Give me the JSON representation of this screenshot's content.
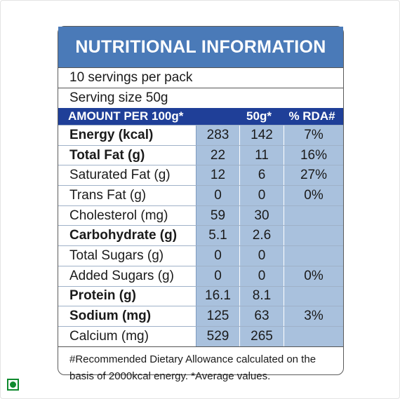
{
  "title": "NUTRITIONAL INFORMATION",
  "servings": "10 servings per pack",
  "serving_size": "Serving size 50g",
  "columns": [
    "AMOUNT PER 100g*",
    "50g*",
    "% RDA#"
  ],
  "rows": [
    {
      "name": "Energy (kcal)",
      "bold": true,
      "per100": "283",
      "per50": "142",
      "rda": "7%"
    },
    {
      "name": "Total Fat (g)",
      "bold": true,
      "per100": "22",
      "per50": "11",
      "rda": "16%"
    },
    {
      "name": "Saturated Fat (g)",
      "bold": false,
      "per100": "12",
      "per50": "6",
      "rda": "27%"
    },
    {
      "name": "Trans Fat (g)",
      "bold": false,
      "per100": "0",
      "per50": "0",
      "rda": "0%"
    },
    {
      "name": "Cholesterol (mg)",
      "bold": false,
      "per100": "59",
      "per50": "30",
      "rda": ""
    },
    {
      "name": "Carbohydrate (g)",
      "bold": true,
      "per100": "5.1",
      "per50": "2.6",
      "rda": ""
    },
    {
      "name": "Total Sugars (g)",
      "bold": false,
      "per100": "0",
      "per50": "0",
      "rda": ""
    },
    {
      "name": "Added Sugars (g)",
      "bold": false,
      "per100": "0",
      "per50": "0",
      "rda": "0%"
    },
    {
      "name": "Protein (g)",
      "bold": true,
      "per100": "16.1",
      "per50": "8.1",
      "rda": ""
    },
    {
      "name": "Sodium (mg)",
      "bold": true,
      "per100": "125",
      "per50": "63",
      "rda": "3%"
    },
    {
      "name": "Calcium (mg)",
      "bold": false,
      "per100": "529",
      "per50": "265",
      "rda": ""
    }
  ],
  "footnote": "#Recommended Dietary Allowance calculated on the basis of 2000kcal energy.  *Average values.",
  "colors": {
    "title_bg": "#4a7ab8",
    "header_bg": "#1f3f98",
    "cell_bg": "#a9c1dd",
    "veg_mark": "#0f8a2e"
  },
  "icons": {
    "veg_mark": "vegetarian-mark-icon"
  }
}
